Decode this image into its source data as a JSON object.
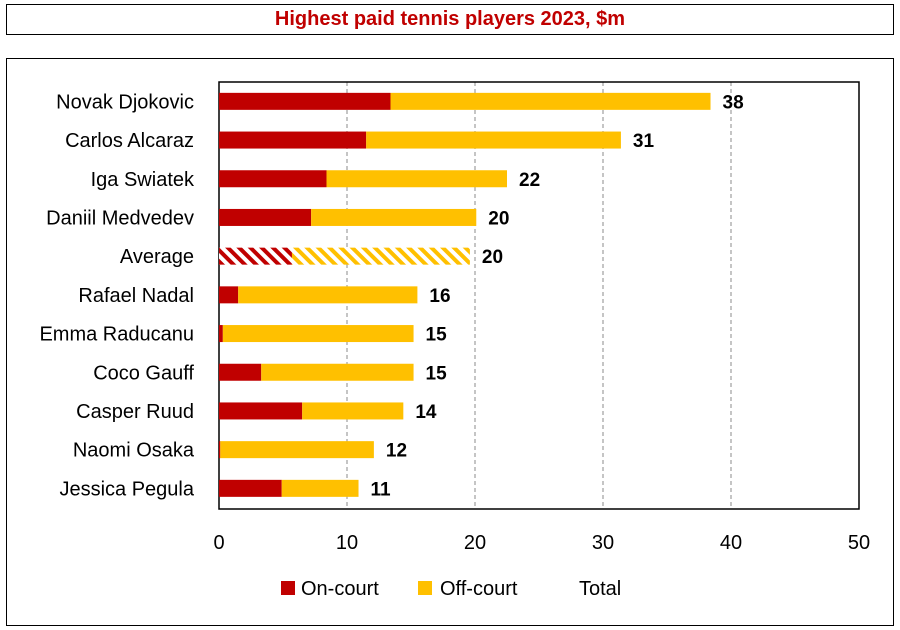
{
  "chart_data": {
    "type": "bar",
    "orientation": "horizontal",
    "stacked": true,
    "title": "Highest paid tennis players 2023, $m",
    "categories": [
      "Novak Djokovic",
      "Carlos Alcaraz",
      "Iga Swiatek",
      "Daniil Medvedev",
      "Average",
      "Rafael Nadal",
      "Emma Raducanu",
      "Coco Gauff",
      "Casper Ruud",
      "Naomi Osaka",
      "Jessica Pegula"
    ],
    "series": [
      {
        "name": "On-court",
        "color": "#c00000",
        "values": [
          13.4,
          11.5,
          8.4,
          7.2,
          5.7,
          1.5,
          0.3,
          3.3,
          6.5,
          0.1,
          4.9
        ]
      },
      {
        "name": "Off-court",
        "color": "#ffc000",
        "values": [
          25.0,
          19.9,
          14.1,
          12.9,
          13.9,
          14.0,
          14.9,
          11.9,
          7.9,
          12.0,
          6.0
        ]
      }
    ],
    "totals_series_name": "Total",
    "totals": [
      "38",
      "31",
      "22",
      "20",
      "20",
      "16",
      "15",
      "15",
      "14",
      "12",
      "11"
    ],
    "hatched_category": "Average",
    "xlim": [
      0,
      50
    ],
    "xticks": [
      "0",
      "10",
      "20",
      "30",
      "40",
      "50"
    ],
    "grid": "vertical dashed",
    "legend": "bottom"
  }
}
